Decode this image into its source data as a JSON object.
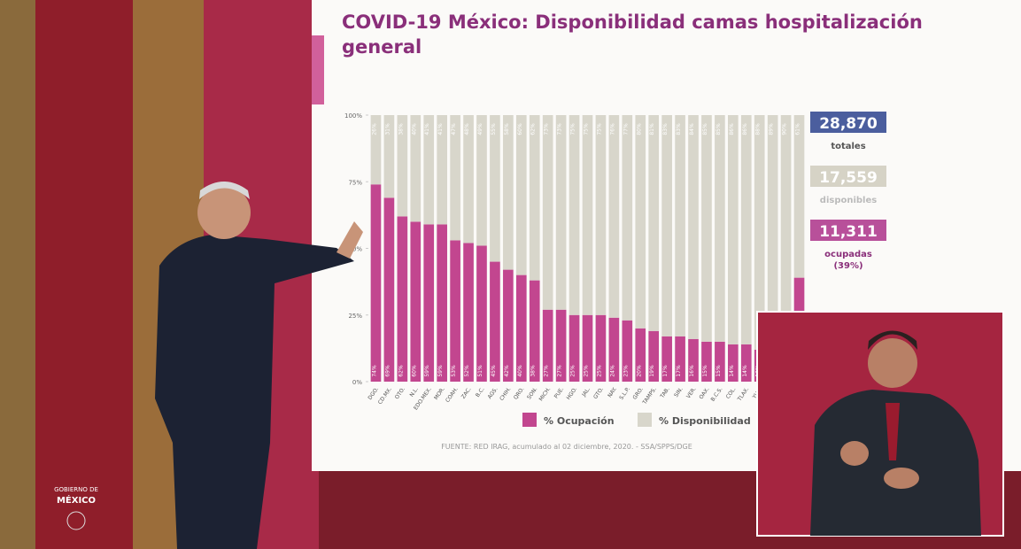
{
  "chart_data": {
    "type": "stacked-bar",
    "title": "COVID-19 México: Disponibilidad camas hospitalización general",
    "categories": [
      "DGO.",
      "CD.MX.",
      "OTO.",
      "N.L.",
      "EDO.MEX.",
      "MOR.",
      "COAH.",
      "ZAC.",
      "B.C.",
      "AGS.",
      "CHIH.",
      "QRO.",
      "SON.",
      "MICH.",
      "PUE.",
      "HGO.",
      "JAL.",
      "GTO.",
      "NAY.",
      "S.L.P.",
      "GRO.",
      "TAMPS.",
      "TAB.",
      "SIN.",
      "VER.",
      "OAX.",
      "B.C.S.",
      "COL.",
      "TLAX.",
      "YUC.",
      null,
      null,
      null
    ],
    "series": [
      {
        "name": "% Ocupación",
        "color": "#c2468f",
        "values": [
          74,
          69,
          62,
          60,
          59,
          59,
          53,
          52,
          51,
          45,
          42,
          40,
          38,
          27,
          27,
          25,
          25,
          25,
          24,
          23,
          20,
          19,
          17,
          17,
          16,
          15,
          15,
          14,
          14,
          12,
          11,
          10,
          39
        ],
        "value_labels": [
          "74%",
          "69%",
          "62%",
          "60%",
          "59%",
          "59%",
          "53%",
          "52%",
          "51%",
          "45%",
          "42%",
          "40%",
          "38%",
          "27%",
          "27%",
          "25%",
          "25%",
          "25%",
          "24%",
          "23%",
          "20%",
          "19%",
          "17%",
          "17%",
          "16%",
          "15%",
          "15%",
          "14%",
          "14%",
          "12%",
          "11%",
          "10%",
          "39%"
        ]
      },
      {
        "name": "% Disponibilidad",
        "color": "#d8d6cb",
        "values": [
          26,
          31,
          38,
          40,
          41,
          41,
          47,
          48,
          49,
          55,
          58,
          60,
          62,
          73,
          73,
          75,
          75,
          75,
          76,
          77,
          80,
          81,
          83,
          83,
          84,
          85,
          85,
          86,
          86,
          88,
          89,
          90,
          61
        ],
        "value_labels": [
          "26%",
          "31%",
          "38%",
          "40%",
          "41%",
          "41%",
          "47%",
          "48%",
          "49%",
          "55%",
          "58%",
          "60%",
          "62%",
          "73%",
          "73%",
          "75%",
          "75%",
          "75%",
          "76%",
          "77%",
          "80%",
          "81%",
          "83%",
          "83%",
          "84%",
          "85%",
          "85%",
          "86%",
          "86%",
          "88%",
          "89%",
          "90%",
          "61%"
        ]
      }
    ],
    "ylim": [
      0,
      100
    ],
    "yticks": [
      {
        "value": 0,
        "label": "0%"
      },
      {
        "value": 25,
        "label": "25%"
      },
      {
        "value": 50,
        "label": "50%"
      },
      {
        "value": 75,
        "label": "75%"
      },
      {
        "value": 100,
        "label": "100%"
      }
    ],
    "legend": "bottom",
    "source": "FUENTE: RED IRAG, acumulado al 02 diciembre, 2020. - SSA/SPPS/DGE"
  },
  "summary": [
    {
      "value": "28,870",
      "label": "totales"
    },
    {
      "value": "17,559",
      "label": "disponibles"
    },
    {
      "value": "11,311",
      "label": "ocupadas",
      "note": "(39%)"
    }
  ],
  "branding": {
    "line1": "GOBIERNO DE",
    "line2": "MÉXICO"
  }
}
